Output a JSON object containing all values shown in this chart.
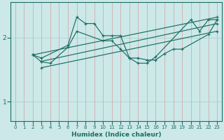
{
  "xlabel": "Humidex (Indice chaleur)",
  "xlim": [
    -0.5,
    23.5
  ],
  "ylim": [
    0.7,
    2.55
  ],
  "yticks": [
    1,
    2
  ],
  "xticks": [
    0,
    1,
    2,
    3,
    4,
    5,
    6,
    7,
    8,
    9,
    10,
    11,
    12,
    13,
    14,
    15,
    16,
    17,
    18,
    19,
    20,
    21,
    22,
    23
  ],
  "bg_color": "#cce8e8",
  "line_color": "#1a6e64",
  "grid_color": "#aacece",
  "lines": [
    {
      "x": [
        2,
        3,
        6,
        7,
        8,
        9,
        10,
        11,
        12,
        13,
        14,
        15,
        16,
        20,
        21,
        22,
        23
      ],
      "y": [
        1.73,
        1.68,
        1.88,
        2.32,
        2.22,
        2.22,
        2.03,
        2.03,
        2.03,
        1.68,
        1.6,
        1.6,
        1.7,
        2.28,
        2.1,
        2.28,
        2.28
      ]
    },
    {
      "x": [
        2,
        3,
        4,
        6,
        7,
        10,
        11,
        12,
        13,
        14,
        15,
        16,
        17,
        18,
        19,
        22,
        23
      ],
      "y": [
        1.73,
        1.62,
        1.6,
        1.85,
        2.1,
        1.95,
        1.95,
        1.82,
        1.68,
        1.68,
        1.65,
        1.65,
        1.75,
        1.82,
        1.82,
        2.05,
        2.28
      ]
    },
    {
      "x": [
        2,
        23
      ],
      "y": [
        1.73,
        2.32
      ]
    },
    {
      "x": [
        3,
        23
      ],
      "y": [
        1.63,
        2.22
      ]
    },
    {
      "x": [
        3,
        23
      ],
      "y": [
        1.53,
        2.1
      ]
    }
  ]
}
